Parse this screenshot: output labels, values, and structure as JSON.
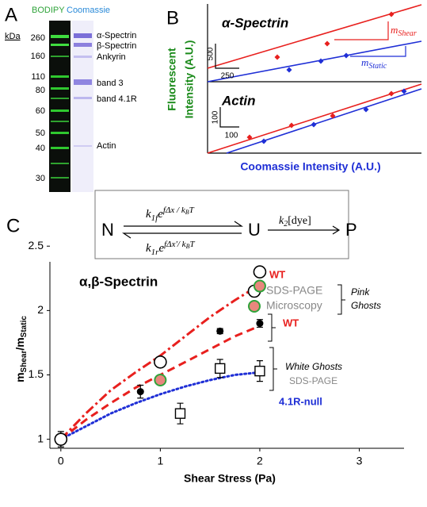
{
  "panel_a": {
    "label": "A",
    "stains": [
      "BODIPY",
      "Coomassie"
    ],
    "unit": "kDa",
    "markers": [
      260,
      160,
      110,
      80,
      60,
      50,
      40,
      30
    ],
    "bands": [
      "α-Spectrin",
      "β-Spectrin",
      "Ankyrin",
      "band 3",
      "band 4.1R",
      "Actin"
    ]
  },
  "panel_b": {
    "label": "B",
    "plots": [
      {
        "title": "α-Spectrin",
        "slope_labels": [
          {
            "base": "m",
            "sub": "Shear"
          },
          {
            "base": "m",
            "sub": "Static"
          }
        ],
        "scale_bars": [
          500,
          250
        ]
      },
      {
        "title": "Actin",
        "scale_bars": [
          100,
          100
        ]
      }
    ],
    "y_label": [
      "Fluorescent",
      "Intensity (A.U.)"
    ],
    "x_label": "Coomassie Intensity (A.U.)"
  },
  "panel_c": {
    "label": "C",
    "scheme": {
      "states": [
        "N",
        "U",
        "P"
      ],
      "forward": {
        "k": "k",
        "sub": "1f",
        "e": "e",
        "exp": "fΔx / k",
        "exp_sub": "B",
        "exp_end": "T"
      },
      "reverse": {
        "k": "k",
        "sub": "1r",
        "e": "e",
        "exp": "fΔx'/ k",
        "exp_sub": "B",
        "exp_end": "T"
      },
      "dye": {
        "k": "k",
        "sub": "2",
        "rest": "[dye]"
      }
    },
    "annotations": {
      "protein": "α,β-Spectrin",
      "wt_pink": "WT",
      "pink_ghosts": [
        "Pink",
        "Ghosts"
      ],
      "wt_white": "WT",
      "white_ghosts": "White Ghosts",
      "white_method": "SDS-PAGE"
    }
  },
  "chart_data": {
    "type": "scatter",
    "x_label": "Shear Stress (Pa)",
    "y_label": {
      "base": "m",
      "sub": "Shear",
      "sep": "/m",
      "sub2": "Static"
    },
    "xlim": [
      -0.11,
      3.45
    ],
    "ylim": [
      0.93,
      2.6
    ],
    "xticks": [
      0,
      1,
      2,
      3
    ],
    "yticks": [
      1,
      1.5,
      2,
      2.5
    ],
    "series": [
      {
        "style": "dashdot",
        "color": "#e8201e",
        "x": [
          0,
          0.25,
          0.5,
          0.75,
          1,
          1.25,
          1.5,
          1.75,
          2
        ],
        "values": [
          1,
          1.2,
          1.38,
          1.52,
          1.65,
          1.8,
          1.95,
          2.08,
          2.2
        ]
      },
      {
        "style": "dashed",
        "color": "#e8201e",
        "x": [
          0,
          0.25,
          0.5,
          0.75,
          1,
          1.25,
          1.5,
          1.75,
          2
        ],
        "values": [
          1,
          1.15,
          1.28,
          1.4,
          1.5,
          1.6,
          1.7,
          1.8,
          1.88
        ]
      },
      {
        "style": "dotted",
        "color": "#1f2fd6",
        "x": [
          0,
          0.25,
          0.5,
          0.75,
          1,
          1.25,
          1.5,
          1.75,
          2
        ],
        "values": [
          1,
          1.1,
          1.2,
          1.28,
          1.35,
          1.41,
          1.46,
          1.5,
          1.52
        ]
      },
      {
        "name": "SDS-PAGE",
        "marker": "circle-open",
        "color": "#000000",
        "x": [
          0,
          1,
          2
        ],
        "values": [
          1,
          1.6,
          2.3
        ],
        "errors": [
          0.06,
          null,
          null
        ]
      },
      {
        "name": "Microscopy",
        "marker": "circle-filled",
        "color": "#e8877d",
        "edge": "#2fa33a",
        "x": [
          1,
          2
        ],
        "values": [
          1.46,
          2.19
        ]
      },
      {
        "marker": "dot",
        "color": "#000000",
        "x": [
          0.8,
          1.6,
          2
        ],
        "values": [
          1.37,
          1.84,
          1.9
        ],
        "errors": [
          0.05,
          0.02,
          0.03
        ]
      },
      {
        "name": "4.1R-null",
        "marker": "square-open",
        "color": "#000000",
        "label_color": "#1f2fd6",
        "x": [
          1.2,
          1.6,
          2
        ],
        "values": [
          1.2,
          1.55,
          1.53
        ],
        "errors": [
          0.08,
          0.07,
          0.08
        ]
      }
    ]
  }
}
